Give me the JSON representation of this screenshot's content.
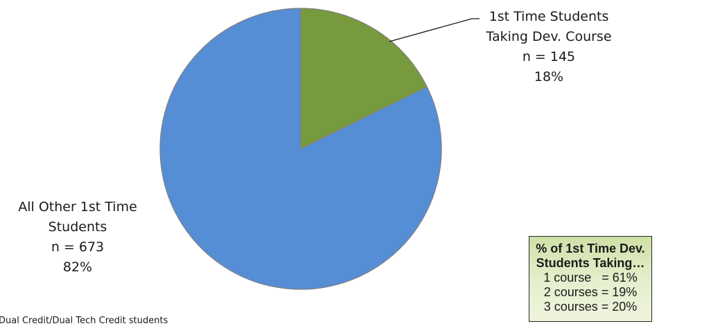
{
  "chart_data": {
    "type": "pie",
    "slices": [
      {
        "label_lines": [
          "1st Time Students",
          "Taking Dev. Course"
        ],
        "n_text": "n = 145",
        "pct_text": "18%",
        "value": 145,
        "percent": 18,
        "color": "#779a3f"
      },
      {
        "label_lines": [
          "All Other 1st Time",
          "Students"
        ],
        "n_text": "n = 673",
        "pct_text": "82%",
        "value": 673,
        "percent": 82,
        "color": "#568ed6"
      }
    ],
    "start_angle_deg": 0,
    "direction": "clockwise"
  },
  "info_box": {
    "title_lines": [
      "% of 1st Time Dev.",
      "Students Taking…"
    ],
    "lines": [
      "1 course   = 61%",
      "2 courses = 19%",
      "3 courses = 20%"
    ],
    "background": "#dbe8bd"
  },
  "footnote": "Dual Credit/Dual Tech Credit students"
}
